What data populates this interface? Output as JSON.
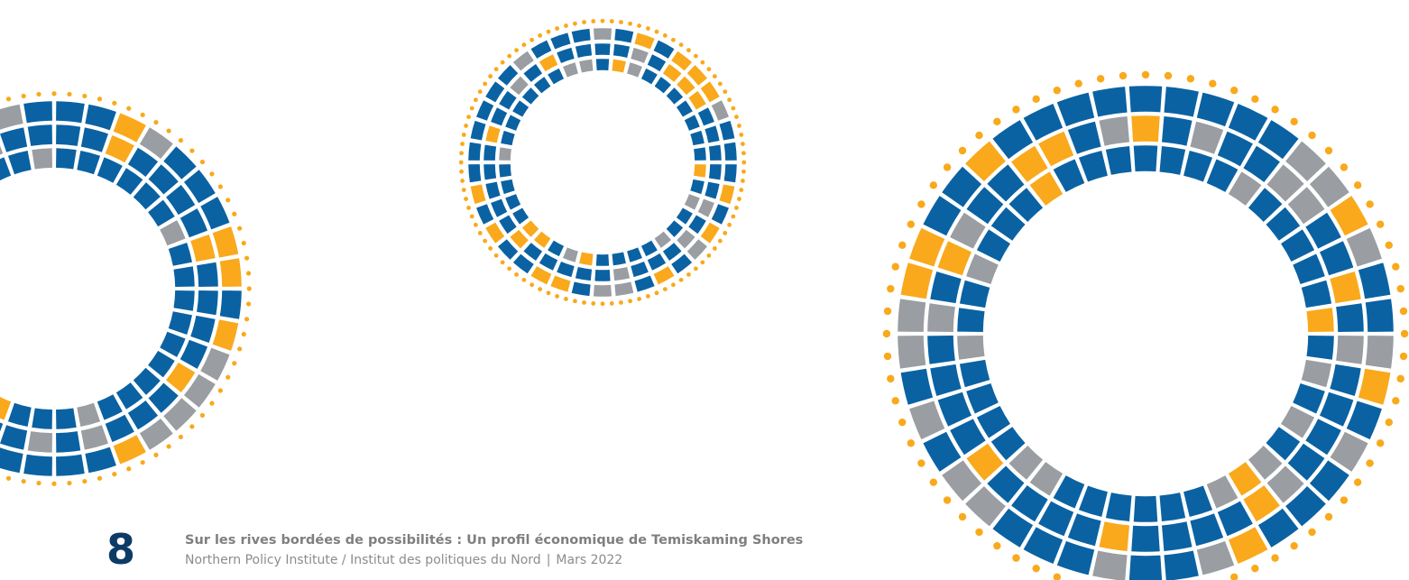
{
  "footer": {
    "page_number": "8",
    "title": "Sur les rives bordées de possibilités : Un profil économique de Temiskaming Shores",
    "publisher": "Northern Policy Institute / Institut des politiques du Nord",
    "separator": "|",
    "date": "Mars 2022"
  },
  "colors": {
    "blue": "#0a62a3",
    "orange": "#f9a91b",
    "gray": "#9a9da1",
    "page_number": "#0d3b66",
    "footer_text": "#8c8c8c"
  }
}
